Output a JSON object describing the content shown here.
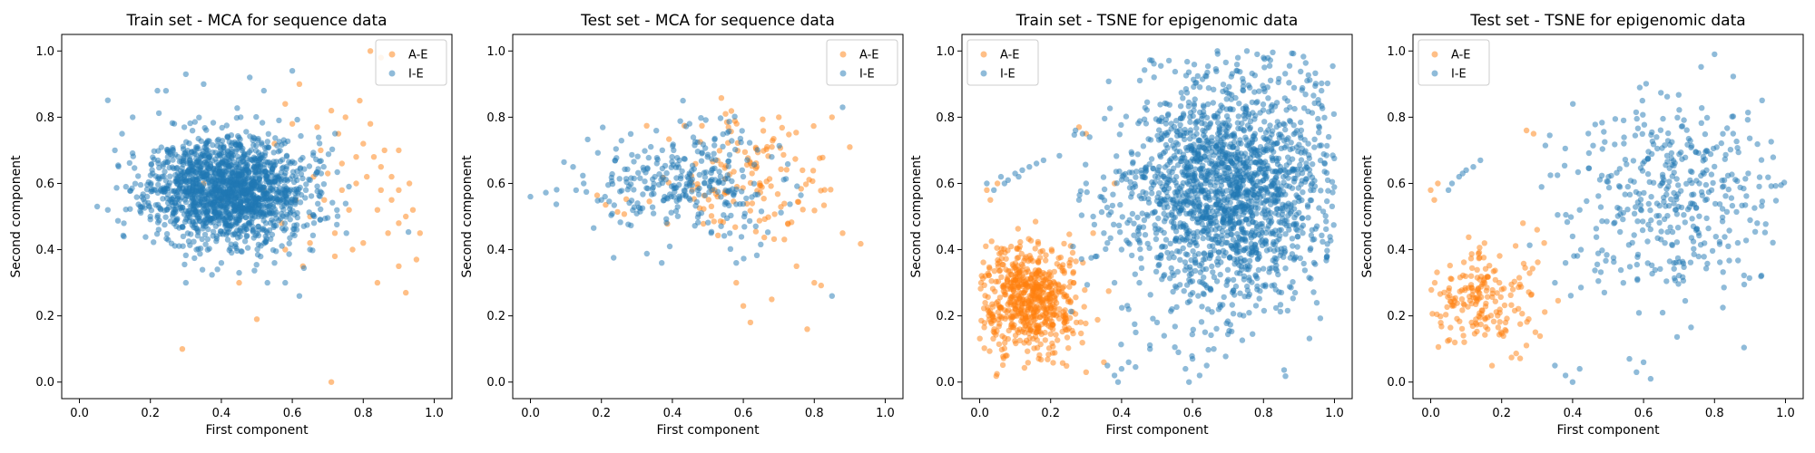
{
  "colors": {
    "A-E": "#ff7f0e",
    "I-E": "#1f77b4"
  },
  "chart_data": [
    {
      "type": "scatter",
      "title": "Train set - MCA for sequence data",
      "xlabel": "First component",
      "ylabel": "Second component",
      "xlim": [
        -0.05,
        1.05
      ],
      "ylim": [
        -0.05,
        1.05
      ],
      "xticks": [
        "0.0",
        "0.2",
        "0.4",
        "0.6",
        "0.8",
        "1.0"
      ],
      "yticks": [
        "0.0",
        "0.2",
        "0.4",
        "0.6",
        "0.8",
        "1.0"
      ],
      "legend": {
        "position": "top-right",
        "entries": [
          "A-E",
          "I-E"
        ]
      },
      "series": [
        {
          "name": "A-E",
          "points": [
            [
              0.82,
              1.0
            ],
            [
              0.85,
              0.98
            ],
            [
              0.29,
              0.1
            ],
            [
              0.5,
              0.19
            ],
            [
              0.71,
              0.0
            ],
            [
              0.95,
              0.37
            ],
            [
              0.92,
              0.27
            ],
            [
              0.84,
              0.3
            ],
            [
              0.62,
              0.9
            ],
            [
              0.58,
              0.84
            ],
            [
              0.75,
              0.8
            ],
            [
              0.8,
              0.72
            ],
            [
              0.85,
              0.65
            ],
            [
              0.9,
              0.7
            ],
            [
              0.88,
              0.55
            ],
            [
              0.92,
              0.5
            ],
            [
              0.87,
              0.45
            ],
            [
              0.78,
              0.6
            ],
            [
              0.7,
              0.63
            ],
            [
              0.65,
              0.5
            ],
            [
              0.72,
              0.45
            ],
            [
              0.8,
              0.42
            ],
            [
              0.9,
              0.35
            ],
            [
              0.93,
              0.6
            ],
            [
              0.85,
              0.58
            ],
            [
              0.76,
              0.52
            ],
            [
              0.68,
              0.7
            ],
            [
              0.6,
              0.78
            ],
            [
              0.55,
              0.72
            ],
            [
              0.5,
              0.65
            ],
            [
              0.82,
              0.78
            ],
            [
              0.78,
              0.68
            ],
            [
              0.74,
              0.58
            ],
            [
              0.88,
              0.62
            ],
            [
              0.9,
              0.48
            ],
            [
              0.84,
              0.52
            ],
            [
              0.72,
              0.38
            ],
            [
              0.65,
              0.42
            ],
            [
              0.58,
              0.4
            ],
            [
              0.96,
              0.45
            ],
            [
              0.94,
              0.52
            ],
            [
              0.79,
              0.85
            ],
            [
              0.73,
              0.75
            ],
            [
              0.66,
              0.62
            ],
            [
              0.61,
              0.55
            ],
            [
              0.57,
              0.48
            ],
            [
              0.63,
              0.35
            ],
            [
              0.77,
              0.4
            ],
            [
              0.86,
              0.7
            ],
            [
              0.81,
              0.62
            ],
            [
              0.69,
              0.55
            ],
            [
              0.74,
              0.66
            ],
            [
              0.9,
              0.58
            ],
            [
              0.83,
              0.68
            ],
            [
              0.71,
              0.82
            ],
            [
              0.67,
              0.77
            ],
            [
              0.45,
              0.3
            ],
            [
              0.4,
              0.55
            ],
            [
              0.35,
              0.6
            ],
            [
              0.52,
              0.58
            ]
          ]
        },
        {
          "name": "I-E",
          "cluster": {
            "cx": 0.42,
            "cy": 0.58,
            "sx": 0.11,
            "sy": 0.08,
            "n": 1700,
            "seed": 11
          },
          "points": [
            [
              0.12,
              0.75
            ],
            [
              0.1,
              0.7
            ],
            [
              0.15,
              0.8
            ],
            [
              0.22,
              0.88
            ],
            [
              0.3,
              0.93
            ],
            [
              0.35,
              0.9
            ],
            [
              0.48,
              0.92
            ],
            [
              0.52,
              0.88
            ],
            [
              0.6,
              0.94
            ],
            [
              0.62,
              0.26
            ],
            [
              0.58,
              0.3
            ],
            [
              0.53,
              0.3
            ],
            [
              0.45,
              0.33
            ],
            [
              0.4,
              0.36
            ],
            [
              0.33,
              0.4
            ],
            [
              0.25,
              0.43
            ],
            [
              0.2,
              0.5
            ],
            [
              0.08,
              0.52
            ],
            [
              0.05,
              0.53
            ],
            [
              0.3,
              0.3
            ],
            [
              0.55,
              0.36
            ],
            [
              0.65,
              0.4
            ]
          ]
        }
      ]
    },
    {
      "type": "scatter",
      "title": "Test set - MCA for sequence data",
      "xlabel": "First component",
      "ylabel": "Second component",
      "xlim": [
        -0.05,
        1.05
      ],
      "ylim": [
        -0.05,
        1.05
      ],
      "xticks": [
        "0.0",
        "0.2",
        "0.4",
        "0.6",
        "0.8",
        "1.0"
      ],
      "yticks": [
        "0.0",
        "0.2",
        "0.4",
        "0.6",
        "0.8",
        "1.0"
      ],
      "legend": {
        "position": "top-right",
        "entries": [
          "A-E",
          "I-E"
        ]
      },
      "series": [
        {
          "name": "A-E",
          "cluster": {
            "cx": 0.62,
            "cy": 0.6,
            "sx": 0.14,
            "sy": 0.1,
            "n": 140,
            "seed": 21
          },
          "points": [
            [
              0.62,
              0.18
            ],
            [
              0.6,
              0.23
            ],
            [
              0.78,
              0.16
            ],
            [
              0.8,
              0.3
            ],
            [
              0.68,
              0.25
            ],
            [
              0.58,
              0.3
            ],
            [
              0.75,
              0.35
            ],
            [
              0.88,
              0.45
            ],
            [
              0.9,
              0.71
            ],
            [
              0.85,
              0.8
            ],
            [
              0.7,
              0.8
            ],
            [
              0.55,
              0.81
            ]
          ]
        },
        {
          "name": "I-E",
          "cluster": {
            "cx": 0.43,
            "cy": 0.6,
            "sx": 0.13,
            "sy": 0.08,
            "n": 300,
            "seed": 22
          },
          "points": [
            [
              0.0,
              0.56
            ],
            [
              0.88,
              0.83
            ],
            [
              0.85,
              0.26
            ],
            [
              0.37,
              0.36
            ],
            [
              0.43,
              0.85
            ],
            [
              0.12,
              0.65
            ],
            [
              0.15,
              0.6
            ],
            [
              0.2,
              0.55
            ],
            [
              0.58,
              0.36
            ]
          ]
        }
      ]
    },
    {
      "type": "scatter",
      "title": "Train set - TSNE for epigenomic data",
      "xlabel": "First component",
      "ylabel": "Second component",
      "xlim": [
        -0.05,
        1.05
      ],
      "ylim": [
        -0.05,
        1.05
      ],
      "xticks": [
        "0.0",
        "0.2",
        "0.4",
        "0.6",
        "0.8",
        "1.0"
      ],
      "yticks": [
        "0.0",
        "0.2",
        "0.4",
        "0.6",
        "0.8",
        "1.0"
      ],
      "legend": {
        "position": "top-left",
        "entries": [
          "A-E",
          "I-E"
        ]
      },
      "series": [
        {
          "name": "A-E",
          "cluster": {
            "cx": 0.14,
            "cy": 0.25,
            "sx": 0.07,
            "sy": 0.08,
            "n": 650,
            "seed": 31
          },
          "points": [
            [
              0.02,
              0.58
            ],
            [
              0.03,
              0.55
            ],
            [
              0.05,
              0.6
            ],
            [
              0.28,
              0.77
            ],
            [
              0.3,
              0.75
            ],
            [
              0.32,
              0.45
            ],
            [
              0.3,
              0.03
            ],
            [
              0.35,
              0.06
            ],
            [
              0.38,
              0.6
            ]
          ]
        },
        {
          "name": "I-E",
          "cluster": {
            "cx": 0.7,
            "cy": 0.58,
            "sx": 0.15,
            "sy": 0.18,
            "n": 1900,
            "seed": 32
          },
          "points": [
            [
              0.02,
              0.6
            ],
            [
              0.04,
              0.58
            ],
            [
              0.06,
              0.62
            ],
            [
              0.08,
              0.61
            ],
            [
              0.1,
              0.63
            ],
            [
              0.12,
              0.64
            ],
            [
              0.14,
              0.65
            ],
            [
              0.16,
              0.66
            ],
            [
              0.18,
              0.67
            ],
            [
              0.11,
              0.62
            ],
            [
              0.07,
              0.6
            ],
            [
              0.27,
              0.76
            ],
            [
              0.29,
              0.75
            ],
            [
              0.31,
              0.74
            ],
            [
              0.4,
              0.04
            ],
            [
              0.38,
              0.02
            ],
            [
              0.36,
              0.05
            ],
            [
              0.42,
              0.06
            ],
            [
              0.39,
              0.0
            ],
            [
              0.6,
              0.07
            ],
            [
              0.58,
              0.04
            ],
            [
              0.62,
              0.02
            ],
            [
              0.56,
              0.09
            ],
            [
              0.64,
              0.05
            ],
            [
              0.59,
              0.0
            ],
            [
              0.66,
              0.1
            ],
            [
              0.32,
              0.5
            ],
            [
              0.35,
              0.45
            ],
            [
              0.38,
              0.3
            ],
            [
              0.4,
              0.4
            ],
            [
              0.42,
              0.22
            ],
            [
              0.45,
              0.3
            ],
            [
              0.33,
              0.38
            ],
            [
              0.67,
              1.0
            ],
            [
              0.8,
              0.98
            ],
            [
              0.3,
              0.6
            ],
            [
              0.28,
              0.55
            ],
            [
              0.34,
              0.56
            ],
            [
              0.36,
              0.42
            ],
            [
              0.44,
              0.15
            ],
            [
              0.48,
              0.1
            ],
            [
              0.5,
              0.18
            ],
            [
              0.52,
              0.14
            ]
          ]
        }
      ]
    },
    {
      "type": "scatter",
      "title": "Test set - TSNE for epigenomic data",
      "xlabel": "First component",
      "ylabel": "Second component",
      "xlim": [
        -0.05,
        1.05
      ],
      "ylim": [
        -0.05,
        1.05
      ],
      "xticks": [
        "0.0",
        "0.2",
        "0.4",
        "0.6",
        "0.8",
        "1.0"
      ],
      "yticks": [
        "0.0",
        "0.2",
        "0.4",
        "0.6",
        "0.8",
        "1.0"
      ],
      "legend": {
        "position": "top-left",
        "entries": [
          "A-E",
          "I-E"
        ]
      },
      "series": [
        {
          "name": "A-E",
          "cluster": {
            "cx": 0.15,
            "cy": 0.25,
            "sx": 0.08,
            "sy": 0.07,
            "n": 190,
            "seed": 41
          },
          "points": [
            [
              0.0,
              0.58
            ],
            [
              0.02,
              0.6
            ],
            [
              0.01,
              0.55
            ],
            [
              0.27,
              0.76
            ],
            [
              0.29,
              0.75
            ],
            [
              0.32,
              0.42
            ],
            [
              0.3,
              0.46
            ],
            [
              0.26,
              0.48
            ]
          ]
        },
        {
          "name": "I-E",
          "cluster": {
            "cx": 0.7,
            "cy": 0.56,
            "sx": 0.16,
            "sy": 0.17,
            "n": 420,
            "seed": 42
          },
          "points": [
            [
              0.06,
              0.6
            ],
            [
              0.08,
              0.62
            ],
            [
              0.1,
              0.64
            ],
            [
              0.12,
              0.65
            ],
            [
              0.14,
              0.67
            ],
            [
              0.09,
              0.63
            ],
            [
              0.05,
              0.58
            ],
            [
              0.38,
              0.02
            ],
            [
              0.4,
              0.0
            ],
            [
              0.35,
              0.05
            ],
            [
              0.42,
              0.04
            ],
            [
              0.58,
              0.03
            ],
            [
              0.6,
              0.06
            ],
            [
              0.62,
              0.01
            ],
            [
              0.56,
              0.07
            ],
            [
              0.8,
              0.99
            ],
            [
              0.35,
              0.3
            ],
            [
              0.38,
              0.36
            ],
            [
              0.4,
              0.44
            ],
            [
              0.42,
              0.52
            ]
          ]
        }
      ]
    }
  ]
}
